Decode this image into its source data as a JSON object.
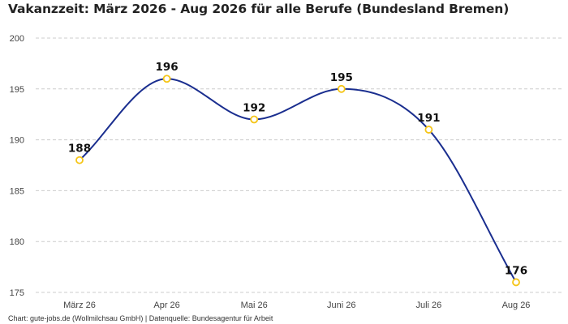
{
  "chart_title": "Vakanzzeit: März 2026 - Aug 2026 für alle Berufe (Bundesland Bremen)",
  "footer": "Chart: gute-jobs.de (Wollmilchsau GmbH) | Datenquelle: Bundesagentur für Arbeit",
  "colors": {
    "line": "#1a2e8f",
    "marker_stroke": "#f5c518",
    "marker_fill": "#ffffff",
    "grid": "#cccccc"
  },
  "chart_data": {
    "type": "line",
    "title": "Vakanzzeit: März 2026 - Aug 2026 für alle Berufe (Bundesland Bremen)",
    "xlabel": "",
    "ylabel": "",
    "categories": [
      "März 26",
      "Apr 26",
      "Mai 26",
      "Juni 26",
      "Juli 26",
      "Aug 26"
    ],
    "series": [
      {
        "values": [
          188,
          196,
          192,
          195,
          191,
          176
        ]
      }
    ],
    "y_ticks": [
      175,
      180,
      185,
      190,
      195,
      200
    ],
    "ylim": [
      175,
      200
    ],
    "grid": "horizontal dashed",
    "legend": "none",
    "data_labels": true,
    "smooth": true
  }
}
